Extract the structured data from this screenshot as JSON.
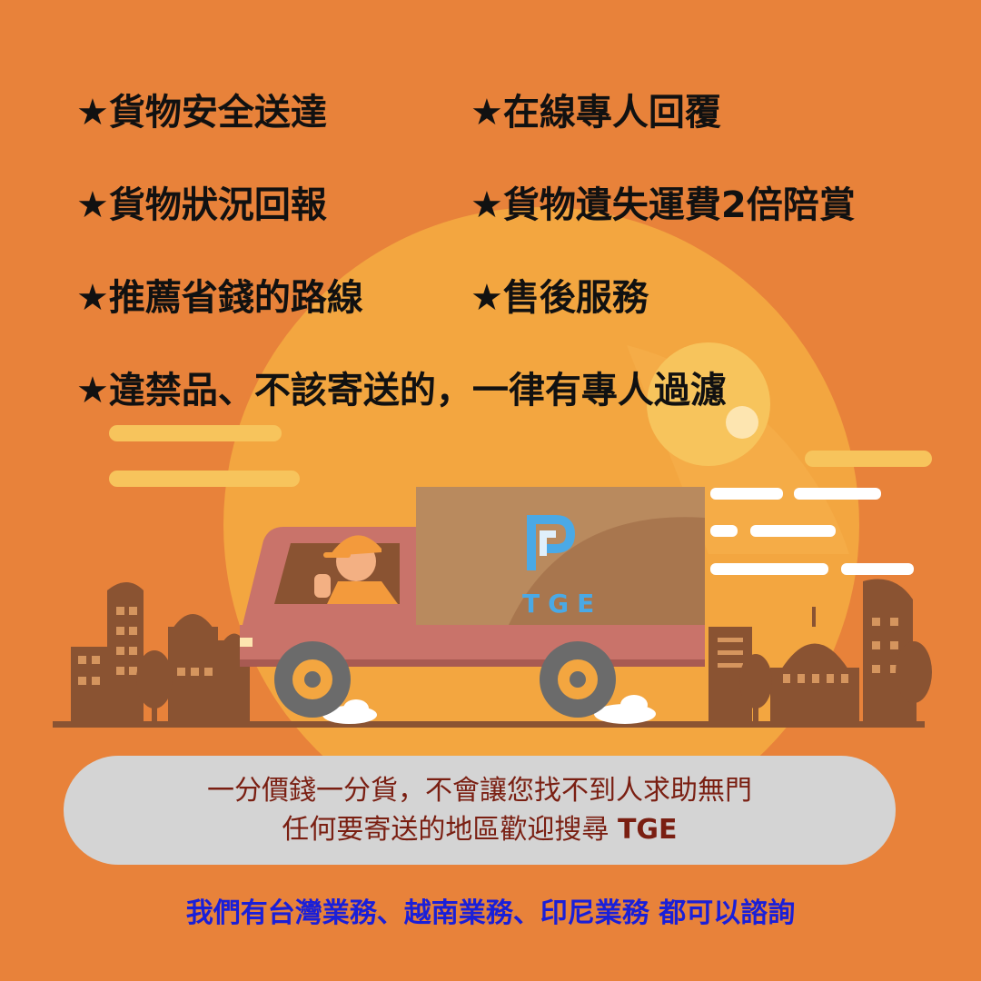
{
  "features": [
    "★貨物安全送達",
    "★在線專人回覆",
    "★貨物狀況回報",
    "★貨物遺失運費2倍陪賞",
    "★推薦省錢的路線",
    "★售後服務",
    "★違禁品、不該寄送的，一律有專人過濾"
  ],
  "truck_logo": {
    "text": "TGE",
    "color": "#4aa9e6"
  },
  "banner": {
    "line1": "一分價錢一分貨，不會讓您找不到人求助無門",
    "line2_prefix": "任何要寄送的地區歡迎搜尋 ",
    "line2_brand": "TGE"
  },
  "footer": "我們有台灣業務、越南業務、印尼業務 都可以諮詢",
  "colors": {
    "background": "#e8823a",
    "sun": "#f3a640",
    "building": "#8a5332",
    "truck_cab": "#c9736a",
    "cargo_box": "#b98a5e",
    "banner_bg": "#d4d4d4",
    "banner_text": "#7a1f12",
    "footer_text": "#1a1fd8"
  }
}
